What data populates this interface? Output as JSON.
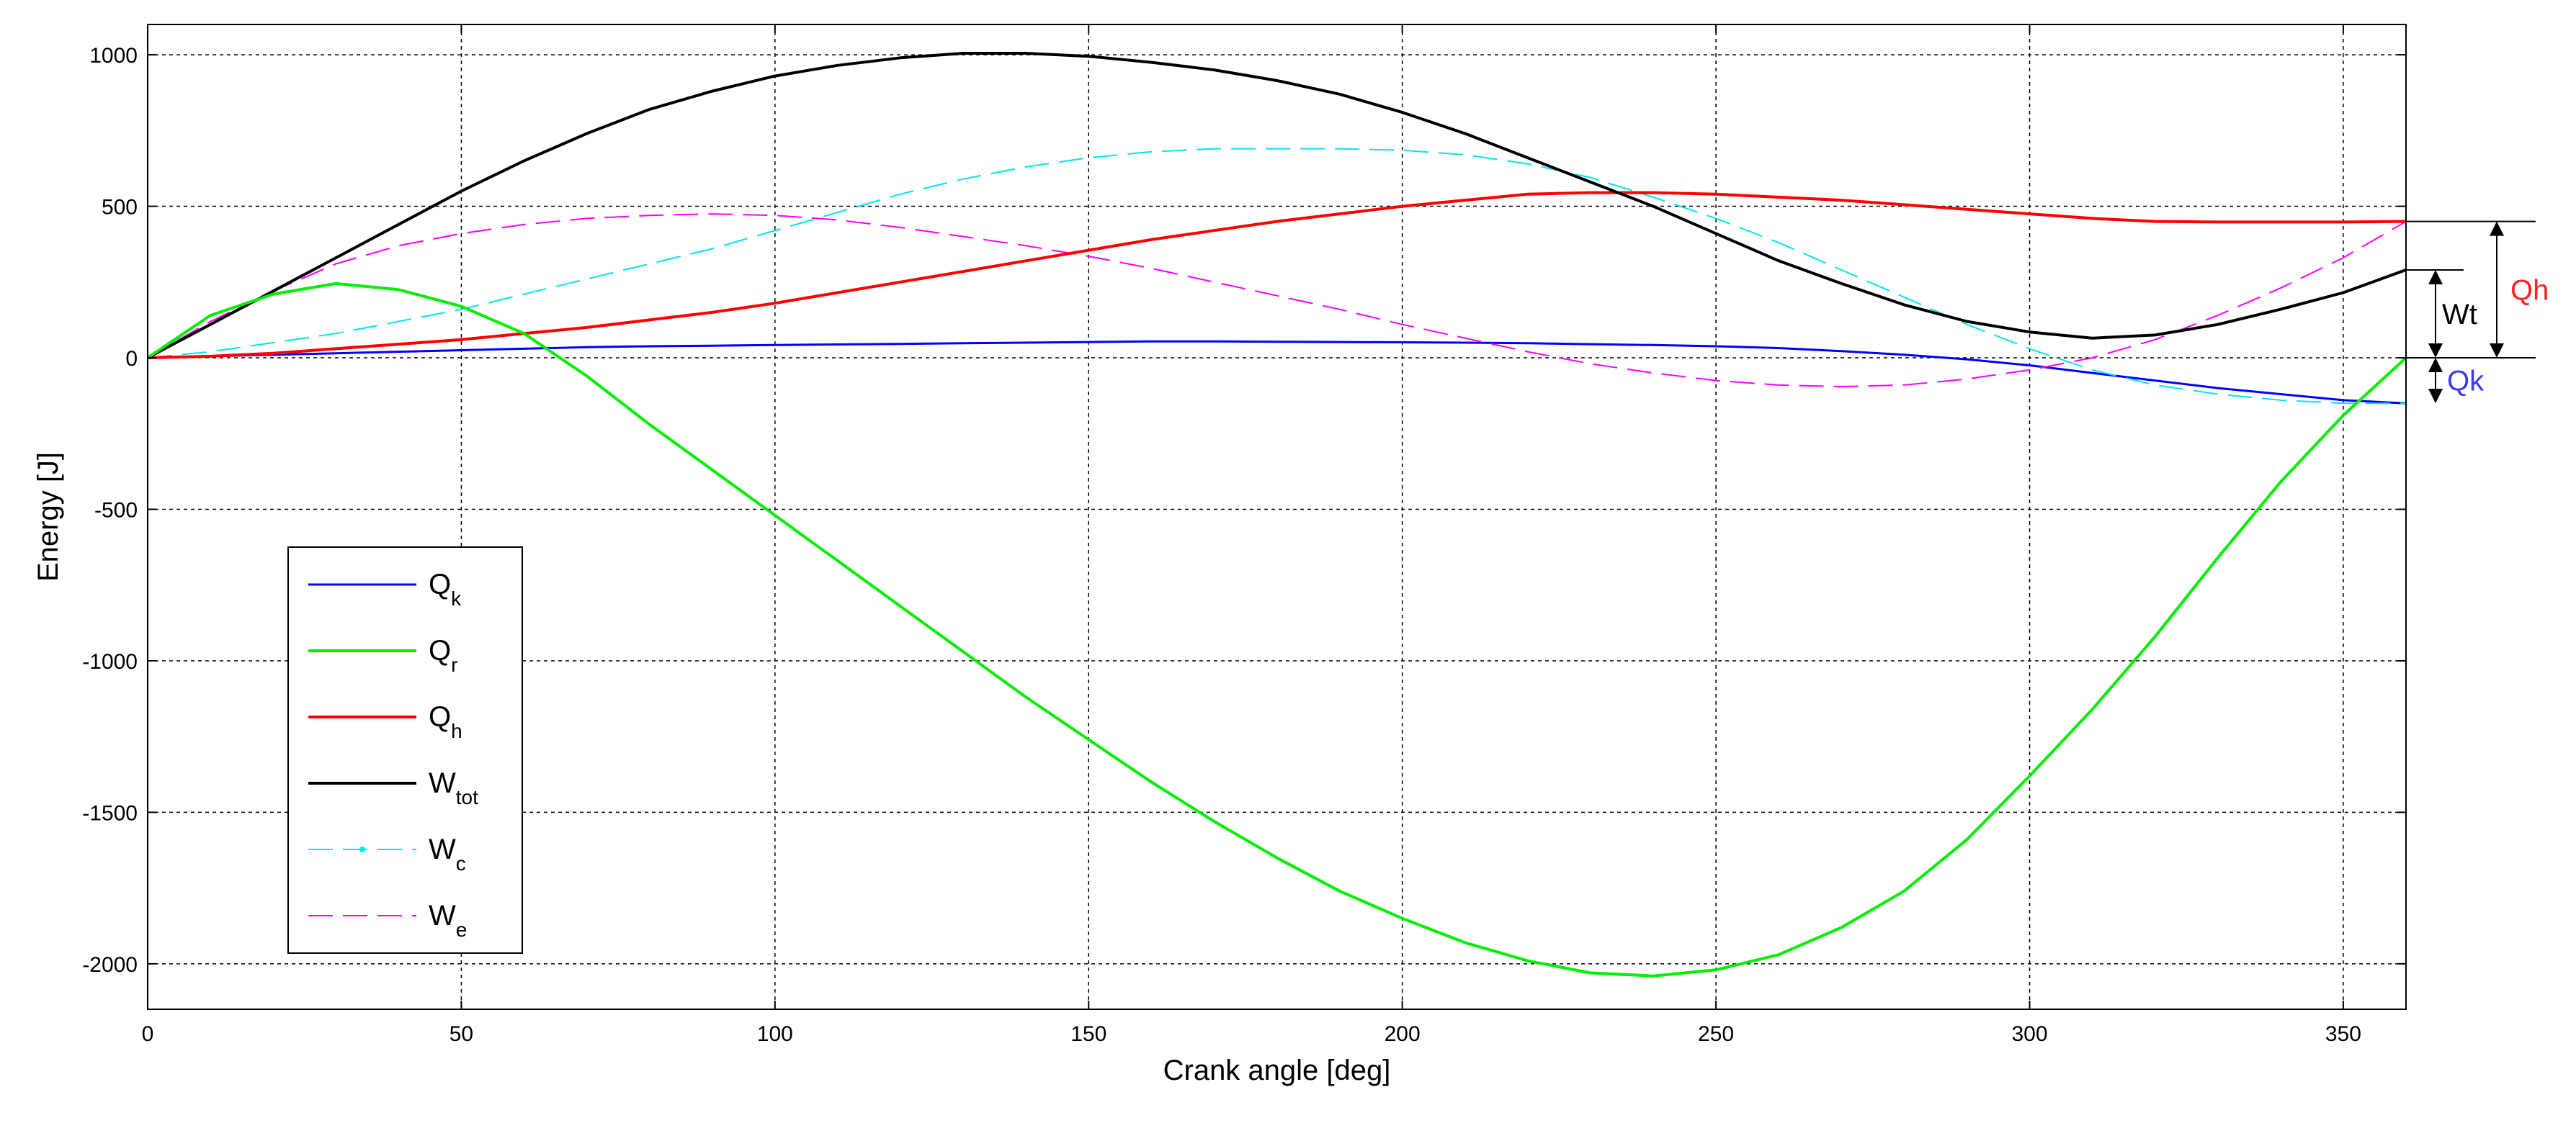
{
  "chart_data": {
    "type": "line",
    "xlabel": "Crank angle [deg]",
    "ylabel": "Energy [J]",
    "xlim": [
      0,
      360
    ],
    "ylim": [
      -2150,
      1100
    ],
    "xticks": [
      0,
      50,
      100,
      150,
      200,
      250,
      300,
      350
    ],
    "yticks": [
      1000,
      500,
      0,
      -500,
      -1000,
      -1500,
      -2000
    ],
    "grid": true,
    "legend_position": "lower-left",
    "x": [
      0,
      10,
      20,
      30,
      40,
      50,
      60,
      70,
      80,
      90,
      100,
      110,
      120,
      130,
      140,
      150,
      160,
      170,
      180,
      190,
      200,
      210,
      220,
      230,
      240,
      250,
      260,
      270,
      280,
      290,
      300,
      310,
      320,
      330,
      340,
      350,
      360
    ],
    "series": [
      {
        "name": "Qk",
        "label_main": "Q",
        "label_sub": "k",
        "color": "#0000ff",
        "dash": "solid",
        "width": 3,
        "values": [
          0,
          5,
          10,
          15,
          20,
          25,
          30,
          35,
          38,
          40,
          42,
          44,
          46,
          48,
          50,
          52,
          54,
          54,
          53,
          52,
          51,
          50,
          48,
          45,
          42,
          38,
          32,
          22,
          10,
          -5,
          -25,
          -50,
          -75,
          -100,
          -120,
          -140,
          -150
        ]
      },
      {
        "name": "Qr",
        "label_main": "Q",
        "label_sub": "r",
        "color": "#00ee00",
        "dash": "solid",
        "width": 4,
        "values": [
          0,
          140,
          210,
          245,
          225,
          170,
          80,
          -60,
          -220,
          -370,
          -520,
          -670,
          -820,
          -970,
          -1120,
          -1260,
          -1400,
          -1530,
          -1650,
          -1760,
          -1850,
          -1930,
          -1990,
          -2030,
          -2040,
          -2020,
          -1970,
          -1880,
          -1760,
          -1590,
          -1380,
          -1160,
          -920,
          -660,
          -410,
          -190,
          0
        ]
      },
      {
        "name": "Qh",
        "label_main": "Q",
        "label_sub": "h",
        "color": "#ff0000",
        "dash": "solid",
        "width": 4,
        "values": [
          0,
          5,
          15,
          30,
          45,
          60,
          80,
          100,
          125,
          150,
          180,
          215,
          250,
          285,
          320,
          355,
          390,
          420,
          450,
          475,
          500,
          520,
          540,
          545,
          545,
          540,
          530,
          520,
          505,
          490,
          475,
          460,
          450,
          448,
          448,
          448,
          450
        ]
      },
      {
        "name": "Wtot",
        "label_main": "W",
        "label_sub": "tot",
        "color": "#000000",
        "dash": "solid",
        "width": 4,
        "values": [
          0,
          110,
          220,
          330,
          440,
          550,
          650,
          740,
          820,
          880,
          930,
          965,
          990,
          1005,
          1005,
          995,
          975,
          950,
          915,
          870,
          810,
          740,
          660,
          580,
          500,
          410,
          320,
          245,
          175,
          120,
          85,
          65,
          75,
          110,
          160,
          215,
          290
        ]
      },
      {
        "name": "Wc",
        "label_main": "W",
        "label_sub": "c",
        "color": "#00e5ee",
        "dash": "long",
        "width": 2,
        "marker_in_legend": true,
        "values": [
          0,
          20,
          50,
          80,
          120,
          160,
          210,
          260,
          310,
          360,
          420,
          480,
          540,
          590,
          630,
          660,
          680,
          690,
          690,
          690,
          685,
          670,
          640,
          595,
          530,
          460,
          380,
          290,
          200,
          110,
          30,
          -40,
          -90,
          -120,
          -140,
          -150,
          -150
        ]
      },
      {
        "name": "We",
        "label_main": "W",
        "label_sub": "e",
        "color": "#ff00ff",
        "dash": "long",
        "width": 2,
        "values": [
          0,
          120,
          220,
          310,
          370,
          410,
          440,
          460,
          470,
          475,
          470,
          455,
          430,
          400,
          370,
          335,
          295,
          250,
          205,
          160,
          110,
          65,
          20,
          -20,
          -50,
          -75,
          -90,
          -95,
          -90,
          -70,
          -40,
          0,
          60,
          140,
          230,
          330,
          450
        ]
      }
    ],
    "annotations": [
      {
        "label": "Qh",
        "color": "#ff2020",
        "from": 0,
        "to": 450
      },
      {
        "label": "Wt",
        "color": "#000000",
        "from": 0,
        "to": 290
      },
      {
        "label": "Qk",
        "color": "#3a3aff",
        "from": -150,
        "to": 0
      }
    ]
  }
}
